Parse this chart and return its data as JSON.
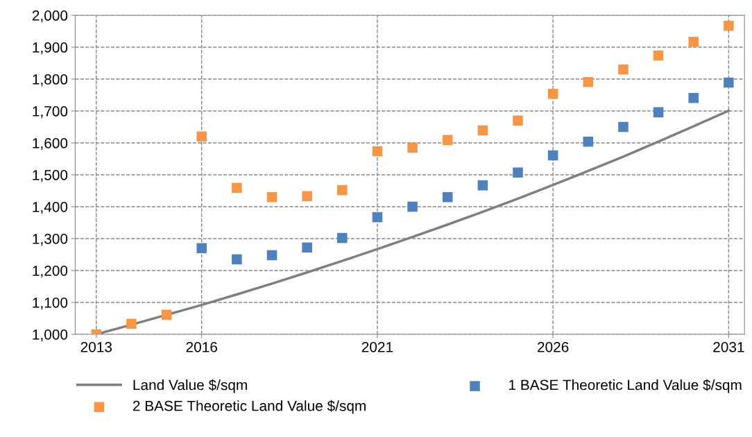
{
  "chart_data": {
    "type": "scatter",
    "x": [
      2013,
      2014,
      2015,
      2016,
      2017,
      2018,
      2019,
      2020,
      2021,
      2022,
      2023,
      2024,
      2025,
      2026,
      2027,
      2028,
      2029,
      2030,
      2031
    ],
    "series": [
      {
        "name": "Land Value $/sqm",
        "type": "line",
        "color": "#7f7f7f",
        "marker": "none",
        "line_style": "solid",
        "values": [
          1000,
          1030,
          1061,
          1092,
          1125,
          1159,
          1194,
          1230,
          1267,
          1305,
          1344,
          1384,
          1425,
          1468,
          1512,
          1557,
          1604,
          1652,
          1701
        ]
      },
      {
        "name": "1 BASE Theoretic Land Value $/sqm",
        "color": "#4f81bd",
        "marker": "square",
        "values": [
          null,
          null,
          null,
          1270,
          1235,
          1248,
          1272,
          1302,
          1367,
          1400,
          1430,
          1467,
          1507,
          1561,
          1604,
          1650,
          1696,
          1741,
          1789
        ]
      },
      {
        "name": "2 BASE Theoretic Land Value $/sqm",
        "color": "#f79646",
        "marker": "square",
        "values": [
          1000,
          1033,
          1061,
          1620,
          1459,
          1430,
          1433,
          1452,
          1574,
          1585,
          1609,
          1639,
          1670,
          1754,
          1791,
          1830,
          1874,
          1917,
          1967
        ]
      }
    ],
    "xlim": [
      2012.4,
      2031.45
    ],
    "xticks": [
      2013,
      2016,
      2021,
      2026,
      2031
    ],
    "ylim": [
      1000,
      2000
    ],
    "yticks": [
      {
        "value": 1000,
        "label": "1,000"
      },
      {
        "value": 1100,
        "label": "1,100"
      },
      {
        "value": 1200,
        "label": "1,200"
      },
      {
        "value": 1300,
        "label": "1,300"
      },
      {
        "value": 1400,
        "label": "1,400"
      },
      {
        "value": 1500,
        "label": "1,500"
      },
      {
        "value": 1600,
        "label": "1,600"
      },
      {
        "value": 1700,
        "label": "1,700"
      },
      {
        "value": 1800,
        "label": "1,800"
      },
      {
        "value": 1900,
        "label": "1,900"
      },
      {
        "value": 2000,
        "label": "2,000"
      }
    ],
    "grid": true,
    "legend": "bottom"
  }
}
